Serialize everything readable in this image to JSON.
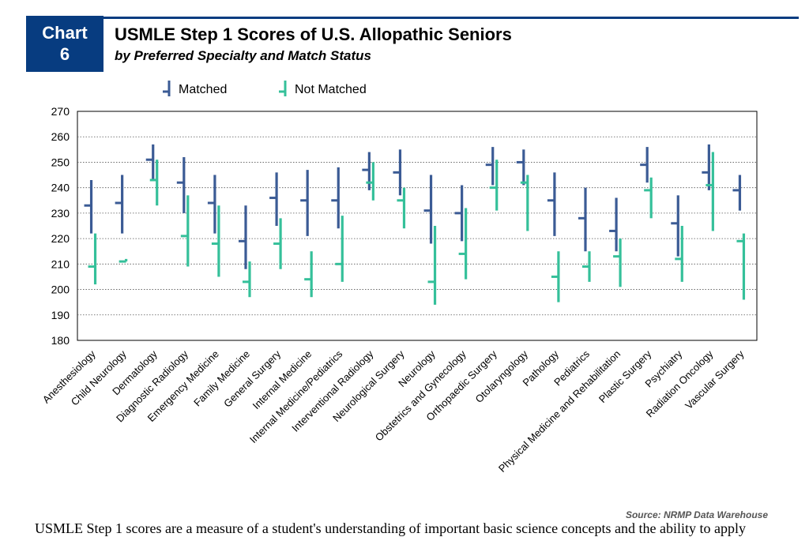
{
  "badge": {
    "line1": "Chart",
    "line2": "6"
  },
  "title": "USMLE Step 1 Scores of U.S. Allopathic Seniors",
  "subtitle": "by Preferred Specialty and Match Status",
  "source": "Source: NRMP Data Warehouse",
  "body_text": "USMLE Step 1 scores are a measure of a student's understanding of important basic science concepts and the ability to apply",
  "colors": {
    "brand": "#073c80",
    "matched": "#3b5b95",
    "not_matched": "#35c09a"
  },
  "chart_data": {
    "type": "range",
    "ylim": [
      180,
      270
    ],
    "yticks": [
      180,
      190,
      200,
      210,
      220,
      230,
      240,
      250,
      260,
      270
    ],
    "grid": true,
    "legend_position": "top",
    "series": [
      {
        "name": "Matched",
        "color": "#3b5b95"
      },
      {
        "name": "Not Matched",
        "color": "#35c09a"
      }
    ],
    "categories": [
      "Anesthesiology",
      "Child Neurology",
      "Dermatology",
      "Diagnostic Radiology",
      "Emergency Medicine",
      "Family Medicine",
      "General Surgery",
      "Internal Medicine",
      "Internal Medicine/Pediatrics",
      "Interventional Radiology",
      "Neurological Surgery",
      "Neurology",
      "Obstetrics and Gynecology",
      "Orthopaedic Surgery",
      "Otolaryngology",
      "Pathology",
      "Pediatrics",
      "Physical Medicine and Rehabilitation",
      "Plastic Surgery",
      "Psychiatry",
      "Radiation Oncology",
      "Vascular Surgery"
    ],
    "matched": [
      {
        "low": 222,
        "high": 243,
        "mean": 233
      },
      {
        "low": 222,
        "high": 245,
        "mean": 234
      },
      {
        "low": 243,
        "high": 257,
        "mean": 251
      },
      {
        "low": 230,
        "high": 252,
        "mean": 242
      },
      {
        "low": 222,
        "high": 245,
        "mean": 234
      },
      {
        "low": 208,
        "high": 233,
        "mean": 219
      },
      {
        "low": 225,
        "high": 246,
        "mean": 236
      },
      {
        "low": 221,
        "high": 247,
        "mean": 235
      },
      {
        "low": 224,
        "high": 248,
        "mean": 235
      },
      {
        "low": 239,
        "high": 254,
        "mean": 247
      },
      {
        "low": 237,
        "high": 255,
        "mean": 246
      },
      {
        "low": 218,
        "high": 245,
        "mean": 231
      },
      {
        "low": 219,
        "high": 241,
        "mean": 230
      },
      {
        "low": 241,
        "high": 256,
        "mean": 249
      },
      {
        "low": 241,
        "high": 255,
        "mean": 250
      },
      {
        "low": 221,
        "high": 246,
        "mean": 235
      },
      {
        "low": 215,
        "high": 240,
        "mean": 228
      },
      {
        "low": 215,
        "high": 236,
        "mean": 223
      },
      {
        "low": 242,
        "high": 256,
        "mean": 249
      },
      {
        "low": 213,
        "high": 237,
        "mean": 226
      },
      {
        "low": 239,
        "high": 257,
        "mean": 246
      },
      {
        "low": 231,
        "high": 245,
        "mean": 239
      }
    ],
    "not_matched": [
      {
        "low": 202,
        "high": 222,
        "mean": 209
      },
      {
        "low": 211,
        "high": 212,
        "mean": 211
      },
      {
        "low": 233,
        "high": 251,
        "mean": 243
      },
      {
        "low": 209,
        "high": 237,
        "mean": 221
      },
      {
        "low": 205,
        "high": 233,
        "mean": 218
      },
      {
        "low": 197,
        "high": 211,
        "mean": 203
      },
      {
        "low": 208,
        "high": 228,
        "mean": 218
      },
      {
        "low": 197,
        "high": 215,
        "mean": 204
      },
      {
        "low": 203,
        "high": 229,
        "mean": 210
      },
      {
        "low": 235,
        "high": 250,
        "mean": 242
      },
      {
        "low": 224,
        "high": 240,
        "mean": 235
      },
      {
        "low": 194,
        "high": 225,
        "mean": 203
      },
      {
        "low": 204,
        "high": 232,
        "mean": 214
      },
      {
        "low": 231,
        "high": 251,
        "mean": 240
      },
      {
        "low": 223,
        "high": 245,
        "mean": 242
      },
      {
        "low": 195,
        "high": 215,
        "mean": 205
      },
      {
        "low": 203,
        "high": 215,
        "mean": 209
      },
      {
        "low": 201,
        "high": 220,
        "mean": 213
      },
      {
        "low": 228,
        "high": 244,
        "mean": 239
      },
      {
        "low": 203,
        "high": 225,
        "mean": 212
      },
      {
        "low": 223,
        "high": 254,
        "mean": 241
      },
      {
        "low": 196,
        "high": 222,
        "mean": 219
      }
    ]
  }
}
